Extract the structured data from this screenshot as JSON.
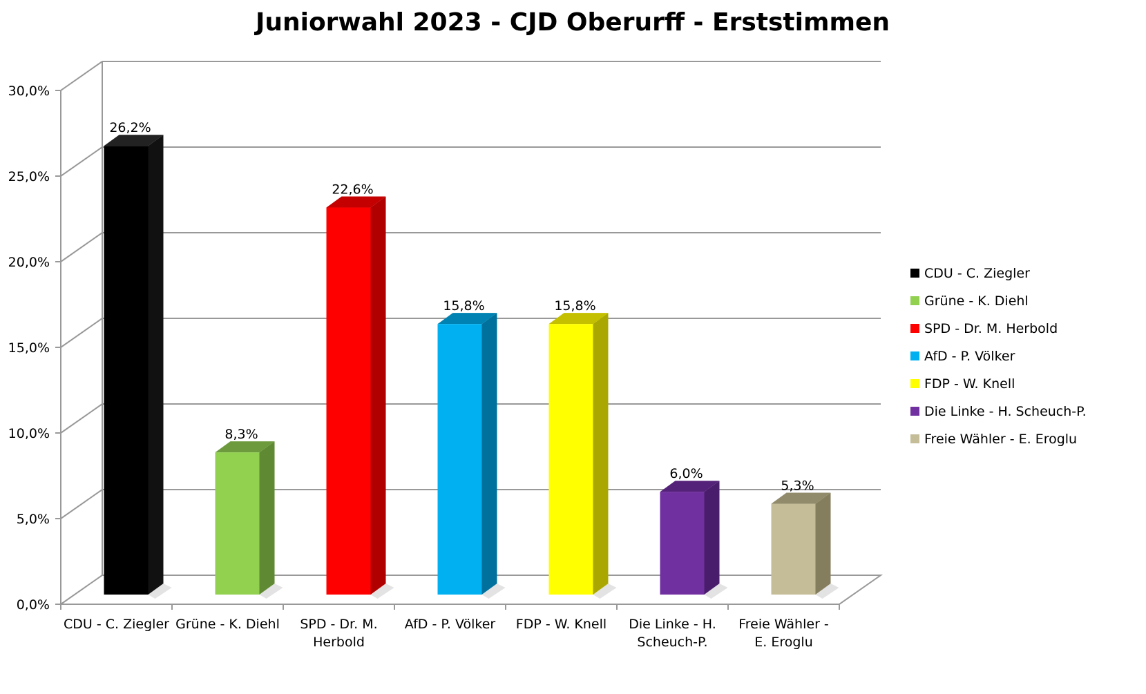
{
  "chart_data": {
    "type": "bar",
    "title": "Juniorwahl 2023 - CJD Oberurff - Erststimmen",
    "xlabel": "",
    "ylabel": "",
    "ylim": [
      0,
      30
    ],
    "y_ticks": [
      "0,0%",
      "5,0%",
      "10,0%",
      "15,0%",
      "20,0%",
      "25,0%",
      "30,0%"
    ],
    "grid": true,
    "three_d": true,
    "legend_position": "right",
    "categories": [
      "CDU - C. Ziegler",
      "Grüne - K. Diehl",
      "SPD - Dr. M. Herbold",
      "AfD - P. Völker",
      "FDP - W. Knell",
      "Die Linke - H. Scheuch-P.",
      "Freie Wähler - E. Eroglu"
    ],
    "category_axis_labels": [
      [
        "CDU - C. Ziegler"
      ],
      [
        "Grüne - K. Diehl"
      ],
      [
        "SPD - Dr. M.",
        "Herbold"
      ],
      [
        "AfD - P. Völker"
      ],
      [
        "FDP - W. Knell"
      ],
      [
        "Die Linke - H.",
        "Scheuch-P."
      ],
      [
        "Freie Wähler -",
        "E. Eroglu"
      ]
    ],
    "values": [
      26.2,
      8.3,
      22.6,
      15.8,
      15.8,
      6.0,
      5.3
    ],
    "data_labels": [
      "26,2%",
      "8,3%",
      "22,6%",
      "15,8%",
      "15,8%",
      "6,0%",
      "5,3%"
    ],
    "colors": [
      "#000000",
      "#92d050",
      "#ff0000",
      "#00b0f0",
      "#ffff00",
      "#7030a0",
      "#c4bd97"
    ],
    "side_colors": [
      "#111111",
      "#5f8a33",
      "#b00000",
      "#00719c",
      "#aaa800",
      "#4a1d6c",
      "#857e5e"
    ],
    "top_colors": [
      "#222222",
      "#6c9a3c",
      "#c40000",
      "#0083b3",
      "#c4c000",
      "#55227a",
      "#928b6b"
    ]
  }
}
